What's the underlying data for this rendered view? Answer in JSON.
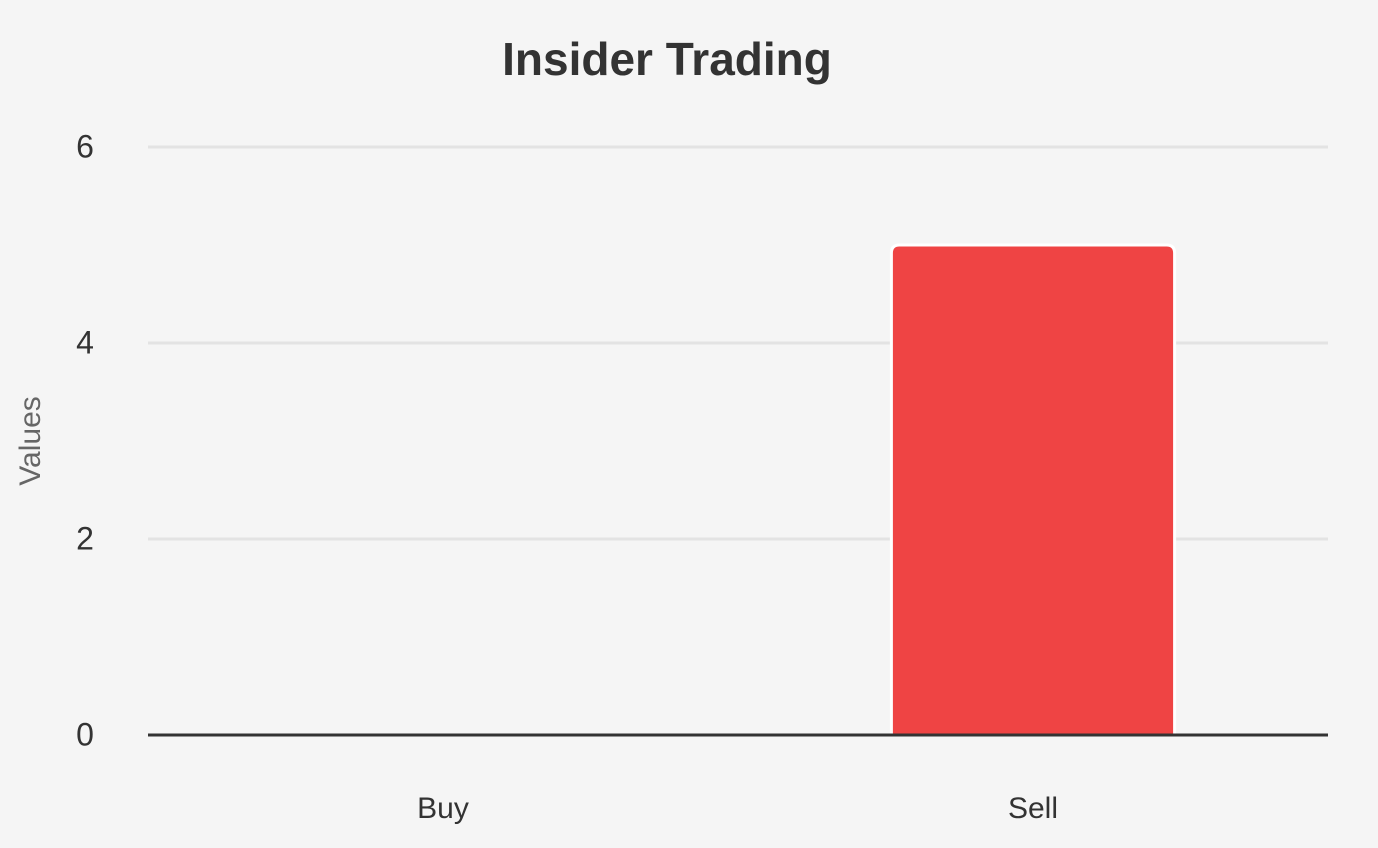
{
  "chart_data": {
    "type": "bar",
    "title": "Insider Trading",
    "y_label": "Values",
    "categories": [
      "Buy",
      "Sell"
    ],
    "values": [
      0,
      5
    ],
    "color": "#ef4444",
    "ylim": [
      0,
      6
    ],
    "yticks": [
      0,
      2,
      4,
      6
    ],
    "grid": true
  }
}
